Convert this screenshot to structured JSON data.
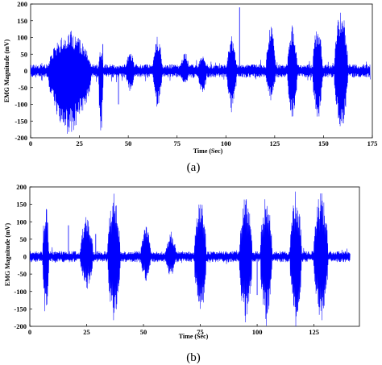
{
  "chart_data": [
    {
      "panel": "(a)",
      "type": "line",
      "caption": "(a)",
      "xlabel": "Time (Sec)",
      "ylabel": "EMG Magnitude (mV)",
      "xlim": [
        0,
        175
      ],
      "ylim": [
        -200,
        200
      ],
      "xticks": [
        0,
        25,
        50,
        75,
        100,
        125,
        150,
        175
      ],
      "yticks": [
        200,
        150,
        100,
        50,
        0,
        -50,
        -100,
        -150,
        -200
      ],
      "grid": false,
      "color": "#0000ff",
      "baseline_noise": 20,
      "bursts": [
        {
          "center": 20,
          "width": 11,
          "max": 125,
          "min": -200
        },
        {
          "center": 36,
          "width": 1.2,
          "max": 75,
          "min": -200
        },
        {
          "center": 51,
          "width": 2.2,
          "max": 65,
          "min": -70
        },
        {
          "center": 65,
          "width": 2.4,
          "max": 110,
          "min": -115
        },
        {
          "center": 79,
          "width": 2.2,
          "max": 60,
          "min": -45
        },
        {
          "center": 88,
          "width": 2.2,
          "max": 55,
          "min": -80
        },
        {
          "center": 103,
          "width": 2.5,
          "max": 105,
          "min": -130
        },
        {
          "center": 123,
          "width": 2.5,
          "max": 150,
          "min": -90
        },
        {
          "center": 134,
          "width": 2.5,
          "max": 140,
          "min": -150
        },
        {
          "center": 147,
          "width": 2.5,
          "max": 155,
          "min": -160
        },
        {
          "center": 159,
          "width": 3.5,
          "max": 200,
          "min": -200
        }
      ],
      "spikes": [
        {
          "x": 37,
          "y": 80
        },
        {
          "x": 107,
          "y": 190
        },
        {
          "x": 45,
          "y": -100
        },
        {
          "x": 115,
          "y": -20
        }
      ],
      "end_x": 174
    },
    {
      "panel": "(b)",
      "type": "line",
      "caption": "(b)",
      "xlabel": "Time (Sec)",
      "ylabel": "EMG Magnitude (mV)",
      "xlim": [
        0,
        145
      ],
      "ylim": [
        -200,
        200
      ],
      "xticks": [
        0,
        25,
        50,
        75,
        100,
        125
      ],
      "yticks": [
        200,
        150,
        100,
        50,
        0,
        -50,
        -100,
        -150,
        -200
      ],
      "grid": false,
      "color": "#0000ff",
      "baseline_noise": 16,
      "bursts": [
        {
          "center": 7,
          "width": 1.4,
          "max": 160,
          "min": -195
        },
        {
          "center": 25,
          "width": 2.8,
          "max": 125,
          "min": -100
        },
        {
          "center": 37,
          "width": 2.8,
          "max": 190,
          "min": -195
        },
        {
          "center": 51,
          "width": 2.2,
          "max": 100,
          "min": -75
        },
        {
          "center": 62,
          "width": 2.3,
          "max": 75,
          "min": -60
        },
        {
          "center": 75,
          "width": 2.6,
          "max": 180,
          "min": -200
        },
        {
          "center": 95,
          "width": 2.8,
          "max": 195,
          "min": -200
        },
        {
          "center": 104,
          "width": 2.6,
          "max": 190,
          "min": -200
        },
        {
          "center": 117,
          "width": 2.6,
          "max": 200,
          "min": -200
        },
        {
          "center": 128,
          "width": 3.2,
          "max": 200,
          "min": -200
        }
      ],
      "spikes": [
        {
          "x": 17,
          "y": 90
        },
        {
          "x": 29,
          "y": 65
        },
        {
          "x": 96,
          "y": 70
        },
        {
          "x": 100,
          "y": -110
        }
      ],
      "end_x": 141
    }
  ]
}
